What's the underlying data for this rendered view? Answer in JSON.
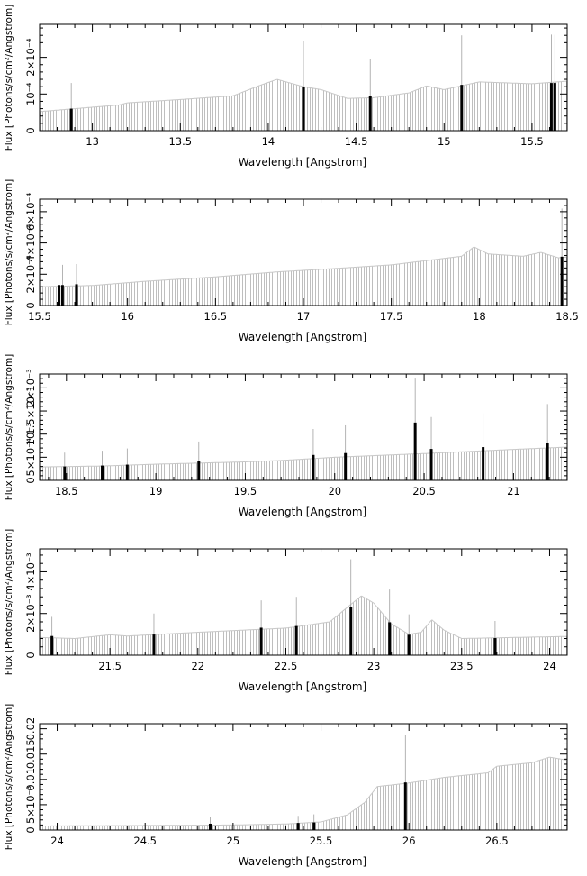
{
  "figure": {
    "panels": [
      {
        "xlabel": "Wavelength [Angstrom]",
        "ylabel": "Flux [Photons/s/cm²/Angstrom]"
      },
      {
        "xlabel": "Wavelength [Angstrom]",
        "ylabel": "Flux [Photons/s/cm²/Angstrom]"
      },
      {
        "xlabel": "Wavelength [Angstrom]",
        "ylabel": "Flux [Photons/s/cm²/Angstrom]"
      },
      {
        "xlabel": "Wavelength [Angstrom]",
        "ylabel": "Flux [Photons/s/cm²/Angstrom]"
      },
      {
        "xlabel": "Wavelength [Angstrom]",
        "ylabel": "Flux [Photons/s/cm²/Angstrom]"
      }
    ]
  },
  "colors": {
    "background": "#ffffff",
    "axis": "#000000",
    "continuum": "#b8b8b8",
    "lines": "#000000",
    "errorbars": "#a0a0a0"
  },
  "chart_data": [
    {
      "type": "bar",
      "xlabel": "Wavelength [Angstrom]",
      "ylabel": "Flux [Photons/s/cm²/Angstrom]",
      "xlim": [
        12.7,
        15.7
      ],
      "ylim": [
        0,
        0.00029
      ],
      "xticks": [
        {
          "v": 13,
          "label": "13"
        },
        {
          "v": 13.5,
          "label": "13.5"
        },
        {
          "v": 14,
          "label": "14"
        },
        {
          "v": 14.5,
          "label": "14.5"
        },
        {
          "v": 15,
          "label": "15"
        },
        {
          "v": 15.5,
          "label": "15.5"
        }
      ],
      "yticks": [
        {
          "v": 0,
          "label": "0"
        },
        {
          "v": 0.0001,
          "label": "10⁻⁴"
        },
        {
          "v": 0.0002,
          "label": "2×10⁻⁴"
        }
      ],
      "continuum": [
        [
          12.7,
          5.2e-05
        ],
        [
          13.0,
          6.4e-05
        ],
        [
          13.15,
          7e-05
        ],
        [
          13.2,
          7.6e-05
        ],
        [
          13.5,
          8.5e-05
        ],
        [
          13.8,
          9.5e-05
        ],
        [
          13.95,
          0.000123
        ],
        [
          14.05,
          0.00014
        ],
        [
          14.2,
          0.00012
        ],
        [
          14.3,
          0.000112
        ],
        [
          14.45,
          8.8e-05
        ],
        [
          14.6,
          9e-05
        ],
        [
          14.8,
          0.000103
        ],
        [
          14.9,
          0.000122
        ],
        [
          15.0,
          0.000112
        ],
        [
          15.2,
          0.000133
        ],
        [
          15.5,
          0.000128
        ],
        [
          15.7,
          0.000135
        ]
      ],
      "lines": [
        {
          "x": 12.88,
          "flux": 6e-05,
          "err": 0.00013
        },
        {
          "x": 14.2,
          "flux": 0.00012,
          "err": 0.000245
        },
        {
          "x": 14.58,
          "flux": 9.5e-05,
          "err": 0.000195
        },
        {
          "x": 15.1,
          "flux": 0.000125,
          "err": 0.00026
        },
        {
          "x": 15.61,
          "flux": 0.00013,
          "err": 0.000262
        },
        {
          "x": 15.63,
          "flux": 0.00013,
          "err": 0.000262
        }
      ]
    },
    {
      "type": "bar",
      "xlabel": "Wavelength [Angstrom]",
      "ylabel": "Flux [Photons/s/cm²/Angstrom]",
      "xlim": [
        15.5,
        18.5
      ],
      "ylim": [
        0,
        0.00068
      ],
      "xticks": [
        {
          "v": 15.5,
          "label": "15.5"
        },
        {
          "v": 16,
          "label": "16"
        },
        {
          "v": 16.5,
          "label": "16.5"
        },
        {
          "v": 17,
          "label": "17"
        },
        {
          "v": 17.5,
          "label": "17.5"
        },
        {
          "v": 18,
          "label": "18"
        },
        {
          "v": 18.5,
          "label": "18.5"
        }
      ],
      "yticks": [
        {
          "v": 0,
          "label": "0"
        },
        {
          "v": 0.0002,
          "label": "2×10⁻⁴"
        },
        {
          "v": 0.0004,
          "label": "4×10⁻⁴"
        },
        {
          "v": 0.0006,
          "label": "6×10⁻⁴"
        }
      ],
      "continuum": [
        [
          15.5,
          0.00012
        ],
        [
          15.8,
          0.000128
        ],
        [
          16.1,
          0.000155
        ],
        [
          16.5,
          0.000183
        ],
        [
          16.85,
          0.000215
        ],
        [
          17.2,
          0.000238
        ],
        [
          17.5,
          0.00026
        ],
        [
          17.9,
          0.000315
        ],
        [
          17.97,
          0.000375
        ],
        [
          18.05,
          0.00033
        ],
        [
          18.25,
          0.000315
        ],
        [
          18.35,
          0.00034
        ],
        [
          18.45,
          0.000305
        ],
        [
          18.5,
          0.00031
        ]
      ],
      "lines": [
        {
          "x": 15.61,
          "flux": 0.000131,
          "err": 0.00026
        },
        {
          "x": 15.63,
          "flux": 0.000131,
          "err": 0.00026
        },
        {
          "x": 15.71,
          "flux": 0.000136,
          "err": 0.000265
        },
        {
          "x": 18.47,
          "flux": 0.000312,
          "err": 0.00062
        }
      ]
    },
    {
      "type": "bar",
      "xlabel": "Wavelength [Angstrom]",
      "ylabel": "Flux [Photons/s/cm²/Angstrom]",
      "xlim": [
        18.35,
        21.3
      ],
      "ylim": [
        0,
        0.0023
      ],
      "xticks": [
        {
          "v": 18.5,
          "label": "18.5"
        },
        {
          "v": 19,
          "label": "19"
        },
        {
          "v": 19.5,
          "label": "19.5"
        },
        {
          "v": 20,
          "label": "20"
        },
        {
          "v": 20.5,
          "label": "20.5"
        },
        {
          "v": 21,
          "label": "21"
        }
      ],
      "yticks": [
        {
          "v": 0,
          "label": "0"
        },
        {
          "v": 0.0005,
          "label": "5×10⁻⁴"
        },
        {
          "v": 0.001,
          "label": "10⁻³"
        },
        {
          "v": 0.0015,
          "label": "1.5×10⁻³"
        },
        {
          "v": 0.002,
          "label": "2×10⁻³"
        }
      ],
      "continuum": [
        [
          18.35,
          0.00029
        ],
        [
          18.7,
          0.00031
        ],
        [
          19.0,
          0.00035
        ],
        [
          19.5,
          0.0004
        ],
        [
          19.7,
          0.00043
        ],
        [
          20.0,
          0.0005
        ],
        [
          20.5,
          0.00058
        ],
        [
          21.0,
          0.00067
        ],
        [
          21.3,
          0.00072
        ]
      ],
      "lines": [
        {
          "x": 18.49,
          "flux": 0.0003,
          "err": 0.0006
        },
        {
          "x": 18.7,
          "flux": 0.00032,
          "err": 0.00064
        },
        {
          "x": 18.84,
          "flux": 0.00034,
          "err": 0.00069
        },
        {
          "x": 19.24,
          "flux": 0.00042,
          "err": 0.00084
        },
        {
          "x": 19.88,
          "flux": 0.00055,
          "err": 0.00111
        },
        {
          "x": 20.06,
          "flux": 0.00059,
          "err": 0.00119
        },
        {
          "x": 20.45,
          "flux": 0.00125,
          "err": 0.00222
        },
        {
          "x": 20.54,
          "flux": 0.00068,
          "err": 0.00137
        },
        {
          "x": 20.83,
          "flux": 0.00072,
          "err": 0.00145
        },
        {
          "x": 21.19,
          "flux": 0.00081,
          "err": 0.00165
        }
      ]
    },
    {
      "type": "bar",
      "xlabel": "Wavelength [Angstrom]",
      "ylabel": "Flux [Photons/s/cm²/Angstrom]",
      "xlim": [
        21.1,
        24.1
      ],
      "ylim": [
        0,
        0.0051
      ],
      "xticks": [
        {
          "v": 21.5,
          "label": "21.5"
        },
        {
          "v": 22,
          "label": "22"
        },
        {
          "v": 22.5,
          "label": "22.5"
        },
        {
          "v": 23,
          "label": "23"
        },
        {
          "v": 23.5,
          "label": "23.5"
        },
        {
          "v": 24,
          "label": "24"
        }
      ],
      "yticks": [
        {
          "v": 0,
          "label": "0"
        },
        {
          "v": 0.002,
          "label": "2×10⁻³"
        },
        {
          "v": 0.004,
          "label": "4×10⁻³"
        }
      ],
      "continuum": [
        [
          21.1,
          0.00085
        ],
        [
          21.3,
          0.0008
        ],
        [
          21.5,
          0.00098
        ],
        [
          21.6,
          0.00092
        ],
        [
          22.0,
          0.0011
        ],
        [
          22.5,
          0.0013
        ],
        [
          22.75,
          0.0016
        ],
        [
          22.85,
          0.0023
        ],
        [
          22.93,
          0.00285
        ],
        [
          23.0,
          0.0025
        ],
        [
          23.1,
          0.0015
        ],
        [
          23.2,
          0.001
        ],
        [
          23.27,
          0.0011
        ],
        [
          23.33,
          0.0017
        ],
        [
          23.4,
          0.0012
        ],
        [
          23.5,
          0.0008
        ],
        [
          24.1,
          0.0009
        ]
      ],
      "lines": [
        {
          "x": 21.17,
          "flux": 0.00092,
          "err": 0.00184
        },
        {
          "x": 21.75,
          "flux": 0.00099,
          "err": 0.002
        },
        {
          "x": 22.36,
          "flux": 0.00132,
          "err": 0.00263
        },
        {
          "x": 22.56,
          "flux": 0.0014,
          "err": 0.0028
        },
        {
          "x": 22.87,
          "flux": 0.00232,
          "err": 0.0046
        },
        {
          "x": 23.09,
          "flux": 0.00158,
          "err": 0.00315
        },
        {
          "x": 23.2,
          "flux": 0.00098,
          "err": 0.00196
        },
        {
          "x": 23.69,
          "flux": 0.00082,
          "err": 0.00164
        }
      ]
    },
    {
      "type": "bar",
      "xlabel": "Wavelength [Angstrom]",
      "ylabel": "Flux [Photons/s/cm²/Angstrom]",
      "xlim": [
        23.9,
        26.9
      ],
      "ylim": [
        0,
        0.021
      ],
      "xticks": [
        {
          "v": 24,
          "label": "24"
        },
        {
          "v": 24.5,
          "label": "24.5"
        },
        {
          "v": 25,
          "label": "25"
        },
        {
          "v": 25.5,
          "label": "25.5"
        },
        {
          "v": 26,
          "label": "26"
        },
        {
          "v": 26.5,
          "label": "26.5"
        }
      ],
      "yticks": [
        {
          "v": 0,
          "label": "0"
        },
        {
          "v": 0.005,
          "label": "5×10⁻³"
        },
        {
          "v": 0.01,
          "label": "0.01"
        },
        {
          "v": 0.015,
          "label": "0.015"
        },
        {
          "v": 0.02,
          "label": "0.02"
        }
      ],
      "continuum": [
        [
          23.9,
          0.0008
        ],
        [
          24.5,
          0.0009
        ],
        [
          25.0,
          0.001
        ],
        [
          25.3,
          0.0012
        ],
        [
          25.5,
          0.0016
        ],
        [
          25.65,
          0.003
        ],
        [
          25.75,
          0.0055
        ],
        [
          25.82,
          0.0086
        ],
        [
          25.9,
          0.0089
        ],
        [
          26.0,
          0.0093
        ],
        [
          26.2,
          0.0104
        ],
        [
          26.45,
          0.0113
        ],
        [
          26.5,
          0.0126
        ],
        [
          26.7,
          0.0133
        ],
        [
          26.8,
          0.0144
        ],
        [
          26.9,
          0.0138
        ]
      ],
      "lines": [
        {
          "x": 24.87,
          "flux": 0.00125,
          "err": 0.0025
        },
        {
          "x": 25.37,
          "flux": 0.0014,
          "err": 0.0028
        },
        {
          "x": 25.46,
          "flux": 0.0015,
          "err": 0.0031
        },
        {
          "x": 25.98,
          "flux": 0.0094,
          "err": 0.0187
        }
      ]
    }
  ]
}
